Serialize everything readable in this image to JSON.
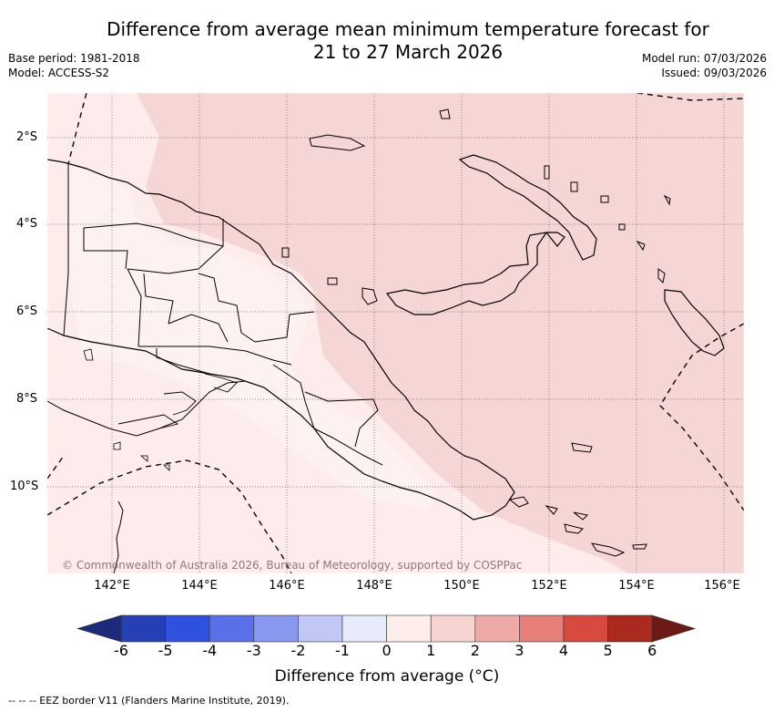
{
  "title_line1": "Difference from average mean minimum temperature forecast for",
  "title_line2": "21 to 27 March 2026",
  "base_period": "Base period: 1981-2018",
  "model": "Model: ACCESS-S2",
  "model_run": "Model run: 07/03/2026",
  "issued": "Issued: 09/03/2026",
  "lat_labels": [
    "2°S",
    "4°S",
    "6°S",
    "8°S",
    "10°S"
  ],
  "lon_labels": [
    "142°E",
    "144°E",
    "146°E",
    "148°E",
    "150°E",
    "152°E",
    "154°E",
    "156°E"
  ],
  "copyright": "© Commonwealth of Australia 2026, Bureau of Meteorology, supported by COSPPac",
  "colorbar": {
    "ticks": [
      "-6",
      "-5",
      "-4",
      "-3",
      "-2",
      "-1",
      "0",
      "1",
      "2",
      "3",
      "4",
      "5",
      "6"
    ],
    "colors": [
      "#1b2a7a",
      "#2440b4",
      "#3050e0",
      "#5a70e8",
      "#8898ee",
      "#c2c8f4",
      "#e8ecfa",
      "#fdeeec",
      "#f6d4d2",
      "#eeaaa6",
      "#e67f78",
      "#d84a40",
      "#aa2a20",
      "#6e1a14"
    ],
    "label": "Difference from average (°C)"
  },
  "eez_note": "--  --  -- EEZ border V11 (Flanders Marine Institute, 2019).",
  "map_colors": {
    "light": "#fdeceb",
    "medium": "#f6d6d4",
    "lighter": "#fef2f0"
  }
}
